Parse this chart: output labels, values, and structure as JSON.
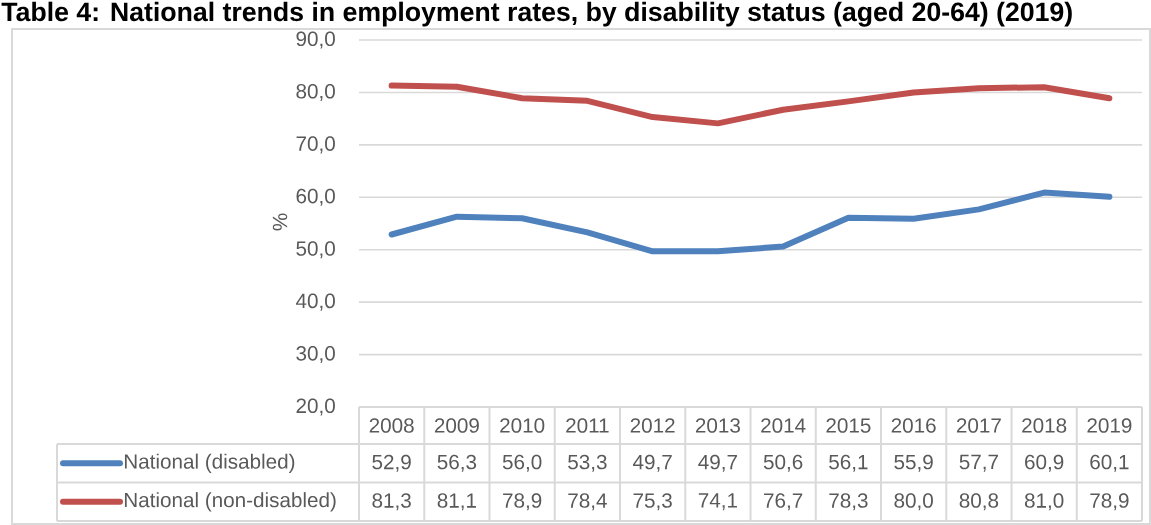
{
  "chart_data": {
    "type": "line",
    "title": "Table 4: National trends in employment rates, by disability status (aged 20-64) (2019)",
    "ylabel": "%",
    "categories": [
      "2008",
      "2009",
      "2010",
      "2011",
      "2012",
      "2013",
      "2014",
      "2015",
      "2016",
      "2017",
      "2018",
      "2019"
    ],
    "series": [
      {
        "name": "National (disabled)",
        "color": "#4f81bd",
        "values": [
          52.9,
          56.3,
          56.0,
          53.3,
          49.7,
          49.7,
          50.6,
          56.1,
          55.9,
          57.7,
          60.9,
          60.1
        ],
        "value_labels": [
          "52,9",
          "56,3",
          "56,0",
          "53,3",
          "49,7",
          "49,7",
          "50,6",
          "56,1",
          "55,9",
          "57,7",
          "60,9",
          "60,1"
        ]
      },
      {
        "name": "National (non-disabled)",
        "color": "#c0504d",
        "values": [
          81.3,
          81.1,
          78.9,
          78.4,
          75.3,
          74.1,
          76.7,
          78.3,
          80.0,
          80.8,
          81.0,
          78.9
        ],
        "value_labels": [
          "81,3",
          "81,1",
          "78,9",
          "78,4",
          "75,3",
          "74,1",
          "76,7",
          "78,3",
          "80,0",
          "80,8",
          "81,0",
          "78,9"
        ]
      }
    ],
    "ylim": [
      20,
      90
    ],
    "yticks": [
      {
        "value": 20,
        "label": "20,0"
      },
      {
        "value": 30,
        "label": "30,0"
      },
      {
        "value": 40,
        "label": "40,0"
      },
      {
        "value": 50,
        "label": "50,0"
      },
      {
        "value": 60,
        "label": "60,0"
      },
      {
        "value": 70,
        "label": "70,0"
      },
      {
        "value": 80,
        "label": "80,0"
      },
      {
        "value": 90,
        "label": "90,0"
      }
    ],
    "grid": "y",
    "legend": "bottom",
    "line_style": "solid"
  }
}
